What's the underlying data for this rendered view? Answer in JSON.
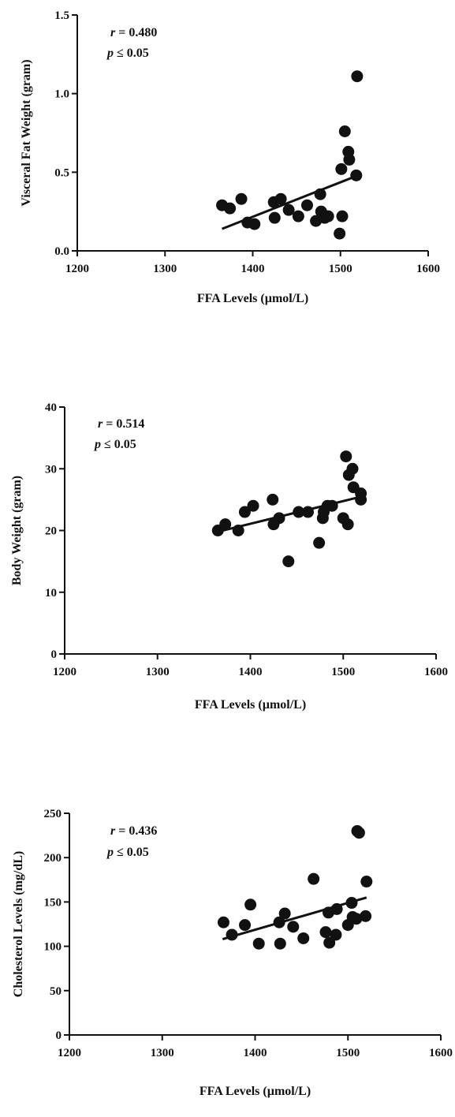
{
  "chart_data": [
    {
      "type": "scatter",
      "xlabel": "FFA Levels (µmol/L)",
      "ylabel": "Visceral Fat Weight (gram)",
      "xlim": [
        1200,
        1600
      ],
      "ylim": [
        0,
        1.5
      ],
      "xticks": [
        1200,
        1300,
        1400,
        1500,
        1600
      ],
      "yticks": [
        0.0,
        0.5,
        1.0,
        1.5
      ],
      "ytick_labels": [
        "0.0",
        "0.5",
        "1.0",
        "1.5"
      ],
      "stats": {
        "r_symbol": "r",
        "r_text": " = 0.480",
        "p_symbol": "p",
        "p_text": " ≤ 0.05"
      },
      "fit_line": [
        [
          1365,
          0.14
        ],
        [
          1520,
          0.48
        ]
      ],
      "points": [
        [
          1365,
          0.29
        ],
        [
          1374,
          0.27
        ],
        [
          1387,
          0.33
        ],
        [
          1394,
          0.18
        ],
        [
          1402,
          0.17
        ],
        [
          1424,
          0.31
        ],
        [
          1425,
          0.21
        ],
        [
          1432,
          0.33
        ],
        [
          1441,
          0.26
        ],
        [
          1452,
          0.22
        ],
        [
          1462,
          0.29
        ],
        [
          1472,
          0.19
        ],
        [
          1477,
          0.36
        ],
        [
          1478,
          0.25
        ],
        [
          1482,
          0.21
        ],
        [
          1486,
          0.22
        ],
        [
          1499,
          0.11
        ],
        [
          1501,
          0.52
        ],
        [
          1502,
          0.22
        ],
        [
          1505,
          0.76
        ],
        [
          1509,
          0.63
        ],
        [
          1510,
          0.58
        ],
        [
          1518,
          0.48
        ],
        [
          1519,
          1.11
        ]
      ]
    },
    {
      "type": "scatter",
      "xlabel": "FFA Levels (µmol/L)",
      "ylabel": "Body Weight (gram)",
      "xlim": [
        1200,
        1600
      ],
      "ylim": [
        0,
        40
      ],
      "xticks": [
        1200,
        1300,
        1400,
        1500,
        1600
      ],
      "yticks": [
        0,
        10,
        20,
        30,
        40
      ],
      "ytick_labels": [
        "0",
        "10",
        "20",
        "30",
        "40"
      ],
      "stats": {
        "r_symbol": "r",
        "r_text": " = 0.514",
        "p_symbol": "p",
        "p_text": " ≤ 0.05"
      },
      "fit_line": [
        [
          1365,
          19.8
        ],
        [
          1520,
          25.5
        ]
      ],
      "points": [
        [
          1365,
          20
        ],
        [
          1373,
          21
        ],
        [
          1387,
          20
        ],
        [
          1394,
          23
        ],
        [
          1403,
          24
        ],
        [
          1424,
          25
        ],
        [
          1425,
          21
        ],
        [
          1431,
          22
        ],
        [
          1441,
          15
        ],
        [
          1452,
          23
        ],
        [
          1462,
          23
        ],
        [
          1474,
          18
        ],
        [
          1478,
          22
        ],
        [
          1479,
          23
        ],
        [
          1483,
          24
        ],
        [
          1488,
          24
        ],
        [
          1500,
          22
        ],
        [
          1503,
          32
        ],
        [
          1505,
          21
        ],
        [
          1506,
          29
        ],
        [
          1510,
          30
        ],
        [
          1511,
          27
        ],
        [
          1519,
          26
        ],
        [
          1519,
          25
        ]
      ]
    },
    {
      "type": "scatter",
      "xlabel": "FFA Levels (µmol/L)",
      "ylabel": "Cholesterol Levels (mg/dL)",
      "xlim": [
        1200,
        1600
      ],
      "ylim": [
        0,
        250
      ],
      "xticks": [
        1200,
        1300,
        1400,
        1500,
        1600
      ],
      "yticks": [
        0,
        50,
        100,
        150,
        200,
        250
      ],
      "ytick_labels": [
        "0",
        "50",
        "100",
        "150",
        "200",
        "250"
      ],
      "stats": {
        "r_symbol": "r",
        "r_text": " = 0.436",
        "p_symbol": "p",
        "p_text": " ≤ 0.05"
      },
      "fit_line": [
        [
          1365,
          108
        ],
        [
          1520,
          155
        ]
      ],
      "points": [
        [
          1366,
          127
        ],
        [
          1375,
          113
        ],
        [
          1389,
          124
        ],
        [
          1395,
          147
        ],
        [
          1404,
          103
        ],
        [
          1426,
          127
        ],
        [
          1427,
          103
        ],
        [
          1432,
          137
        ],
        [
          1441,
          122
        ],
        [
          1452,
          109
        ],
        [
          1463,
          176
        ],
        [
          1476,
          116
        ],
        [
          1479,
          138
        ],
        [
          1480,
          104
        ],
        [
          1487,
          113
        ],
        [
          1488,
          142
        ],
        [
          1500,
          124
        ],
        [
          1504,
          149
        ],
        [
          1505,
          133
        ],
        [
          1509,
          131
        ],
        [
          1510,
          230
        ],
        [
          1512,
          228
        ],
        [
          1519,
          134
        ],
        [
          1520,
          173
        ]
      ]
    }
  ]
}
